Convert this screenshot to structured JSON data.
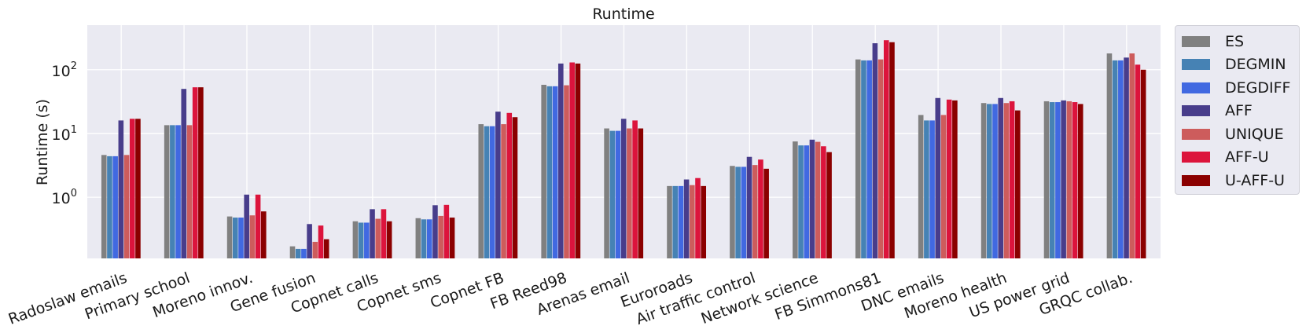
{
  "chart_data": {
    "type": "bar",
    "title": "Runtime",
    "xlabel": "",
    "ylabel": "Runtime (s)",
    "yscale": "log",
    "ylim": [
      0.11,
      500
    ],
    "yticks": [
      {
        "value": 1,
        "base": "10",
        "exp": "0"
      },
      {
        "value": 10,
        "base": "10",
        "exp": "1"
      },
      {
        "value": 100,
        "base": "10",
        "exp": "2"
      }
    ],
    "grid": true,
    "legend_position": "outside-right",
    "categories": [
      "Radoslaw emails",
      "Primary school",
      "Moreno innov.",
      "Gene fusion",
      "Copnet calls",
      "Copnet sms",
      "Copnet FB",
      "FB Reed98",
      "Arenas email",
      "Euroroads",
      "Air traffic control",
      "Network science",
      "FB Simmons81",
      "DNC emails",
      "Moreno health",
      "US power grid",
      "GRQC collab."
    ],
    "series": [
      {
        "name": "ES",
        "color": "#808080",
        "values": [
          4.6,
          13.5,
          0.5,
          0.17,
          0.42,
          0.47,
          14.0,
          58.0,
          12.0,
          1.5,
          3.1,
          7.5,
          145.0,
          19.5,
          30.0,
          32.0,
          180.0
        ]
      },
      {
        "name": "DEGMIN",
        "color": "#4682b4",
        "values": [
          4.4,
          13.5,
          0.48,
          0.155,
          0.4,
          0.45,
          13.0,
          55.0,
          11.0,
          1.5,
          3.0,
          6.5,
          140.0,
          16.0,
          29.0,
          31.0,
          140.0
        ]
      },
      {
        "name": "DEGDIFF",
        "color": "#4169e1",
        "values": [
          4.4,
          13.5,
          0.48,
          0.155,
          0.4,
          0.45,
          13.0,
          55.0,
          11.0,
          1.5,
          3.0,
          6.5,
          140.0,
          16.0,
          29.0,
          31.0,
          140.0
        ]
      },
      {
        "name": "AFF",
        "color": "#483d8b",
        "values": [
          16.0,
          50.0,
          1.1,
          0.38,
          0.65,
          0.75,
          22.0,
          125.0,
          17.0,
          1.9,
          4.3,
          8.0,
          260.0,
          36.0,
          36.0,
          33.0,
          155.0
        ]
      },
      {
        "name": "UNIQUE",
        "color": "#cd5c5c",
        "values": [
          4.6,
          13.5,
          0.52,
          0.2,
          0.46,
          0.51,
          14.0,
          57.0,
          12.0,
          1.55,
          3.2,
          7.4,
          145.0,
          19.5,
          30.0,
          32.0,
          180.0
        ]
      },
      {
        "name": "AFF-U",
        "color": "#dc143c",
        "values": [
          17.0,
          53.0,
          1.1,
          0.36,
          0.65,
          0.76,
          21.0,
          130.0,
          16.0,
          2.0,
          3.9,
          6.3,
          290.0,
          34.0,
          32.0,
          31.0,
          120.0
        ]
      },
      {
        "name": "U-AFF-U",
        "color": "#8b0000",
        "values": [
          17.0,
          53.0,
          0.6,
          0.22,
          0.42,
          0.48,
          18.0,
          125.0,
          12.0,
          1.5,
          2.8,
          5.1,
          270.0,
          33.0,
          23.0,
          29.0,
          100.0
        ]
      }
    ]
  }
}
